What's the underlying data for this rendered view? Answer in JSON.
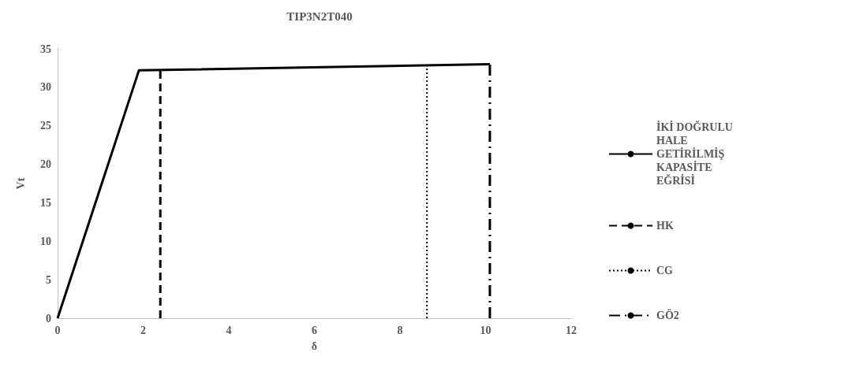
{
  "chart_data": {
    "type": "line",
    "title": "TIP3N2T040",
    "xlabel": "δ",
    "ylabel": "Vt",
    "xlim": [
      0,
      12
    ],
    "xticks": [
      0,
      2,
      4,
      6,
      8,
      10,
      12
    ],
    "ylim": [
      0,
      35
    ],
    "yticks": [
      0,
      5,
      10,
      15,
      20,
      25,
      30,
      35
    ],
    "grid": false,
    "legend": "right",
    "marker": "none",
    "series": [
      {
        "name": "İKİ DOĞRULU HALE GETİRİLMİŞ KAPASİTE EĞRİSİ",
        "color": "#000000",
        "line_style": "solid",
        "x": [
          0,
          1.9,
          10.1
        ],
        "values": [
          0,
          32.2,
          33.0
        ]
      },
      {
        "name": "HK",
        "color": "#000000",
        "line_style": "dashed",
        "x": [
          2.4,
          2.4
        ],
        "values": [
          0,
          32.2
        ]
      },
      {
        "name": "CG",
        "color": "#000000",
        "line_style": "dotted",
        "x": [
          8.63,
          8.63
        ],
        "values": [
          0,
          32.9
        ]
      },
      {
        "name": "GÖ2",
        "color": "#000000",
        "line_style": "dashdot",
        "x": [
          10.1,
          10.1
        ],
        "values": [
          0,
          33.0
        ]
      }
    ]
  }
}
